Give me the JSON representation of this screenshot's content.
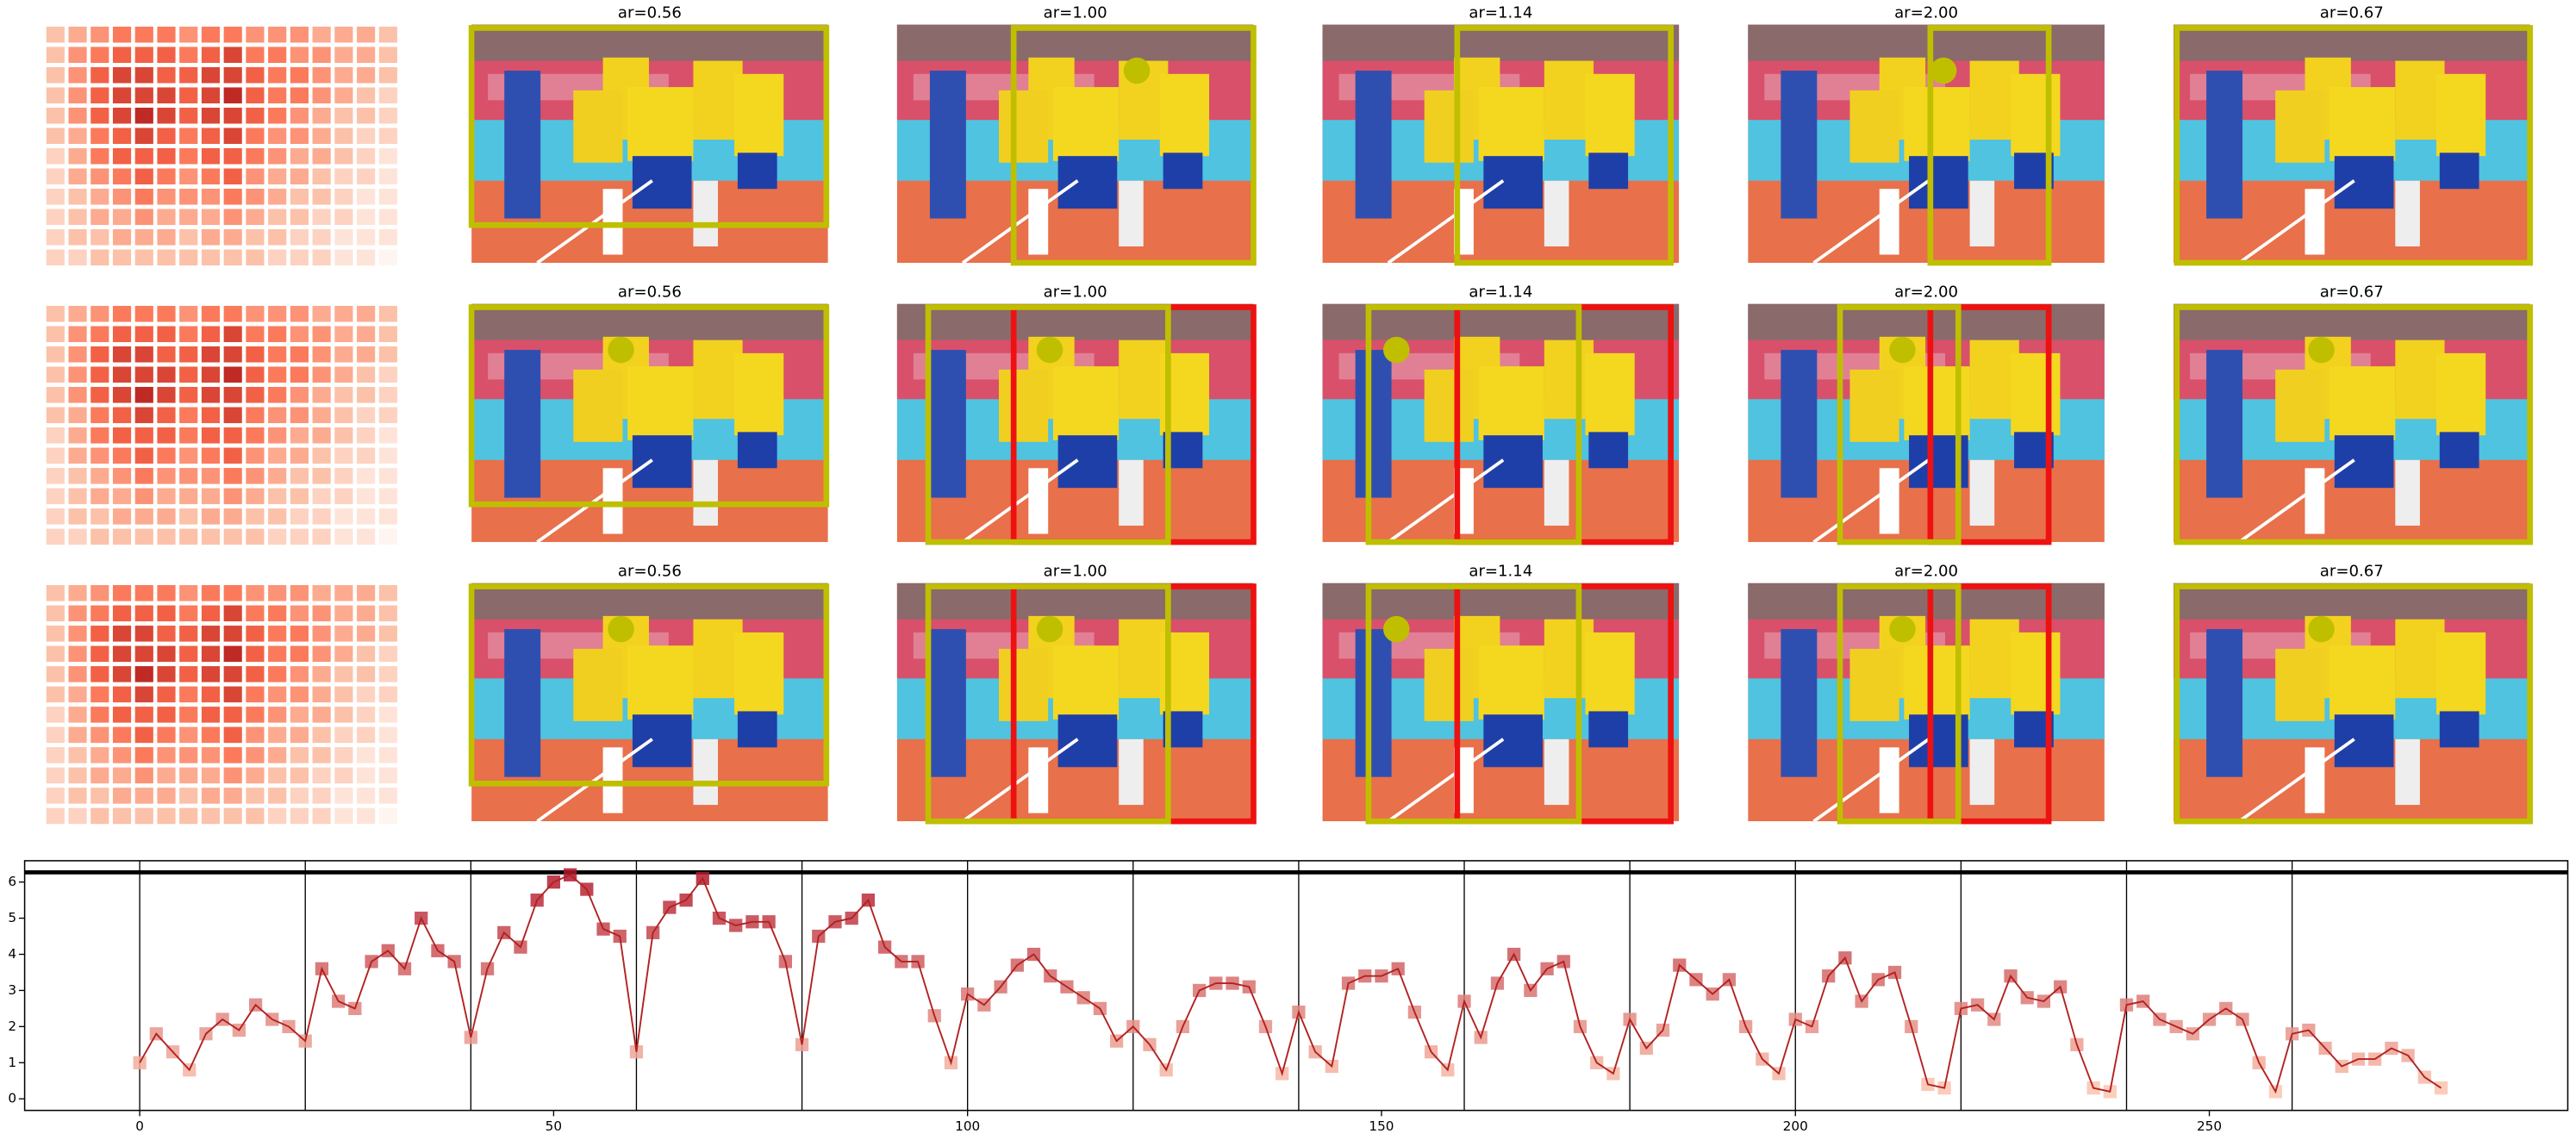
{
  "panels": {
    "titles": [
      "ar=0.56",
      "ar=1.00",
      "ar=1.14",
      "ar=2.00",
      "ar=0.67"
    ]
  },
  "chart_data": [
    {
      "type": "heatmap",
      "colormap": [
        "#fff5f0",
        "#fcbba1",
        "#fb6a4a",
        "#a50f15"
      ],
      "values": [
        [
          0.3,
          0.4,
          0.5,
          0.6,
          0.6,
          0.6,
          0.5,
          0.6,
          0.6,
          0.5,
          0.5,
          0.5,
          0.4,
          0.4,
          0.4,
          0.3
        ],
        [
          0.3,
          0.5,
          0.6,
          0.7,
          0.7,
          0.7,
          0.6,
          0.7,
          0.8,
          0.6,
          0.6,
          0.5,
          0.5,
          0.4,
          0.4,
          0.3
        ],
        [
          0.3,
          0.5,
          0.7,
          0.8,
          0.8,
          0.7,
          0.7,
          0.8,
          0.8,
          0.7,
          0.6,
          0.6,
          0.5,
          0.4,
          0.4,
          0.3
        ],
        [
          0.3,
          0.5,
          0.7,
          0.8,
          0.8,
          0.8,
          0.7,
          0.8,
          0.9,
          0.7,
          0.6,
          0.6,
          0.5,
          0.4,
          0.3,
          0.2
        ],
        [
          0.3,
          0.5,
          0.7,
          0.8,
          0.9,
          0.8,
          0.7,
          0.8,
          0.8,
          0.7,
          0.6,
          0.5,
          0.4,
          0.3,
          0.3,
          0.2
        ],
        [
          0.3,
          0.4,
          0.6,
          0.7,
          0.8,
          0.7,
          0.6,
          0.7,
          0.8,
          0.6,
          0.5,
          0.5,
          0.4,
          0.3,
          0.2,
          0.2
        ],
        [
          0.2,
          0.4,
          0.6,
          0.7,
          0.7,
          0.7,
          0.6,
          0.7,
          0.7,
          0.6,
          0.5,
          0.4,
          0.4,
          0.3,
          0.2,
          0.1
        ],
        [
          0.2,
          0.4,
          0.5,
          0.6,
          0.7,
          0.6,
          0.5,
          0.6,
          0.7,
          0.5,
          0.4,
          0.4,
          0.3,
          0.2,
          0.2,
          0.1
        ],
        [
          0.2,
          0.3,
          0.4,
          0.5,
          0.6,
          0.5,
          0.5,
          0.5,
          0.6,
          0.5,
          0.4,
          0.3,
          0.3,
          0.2,
          0.1,
          0.1
        ],
        [
          0.2,
          0.3,
          0.4,
          0.4,
          0.5,
          0.4,
          0.4,
          0.4,
          0.5,
          0.4,
          0.3,
          0.3,
          0.2,
          0.2,
          0.1,
          0.1
        ],
        [
          0.2,
          0.3,
          0.3,
          0.4,
          0.4,
          0.4,
          0.3,
          0.4,
          0.4,
          0.3,
          0.3,
          0.2,
          0.2,
          0.1,
          0.1,
          0.1
        ],
        [
          0.2,
          0.2,
          0.3,
          0.3,
          0.3,
          0.3,
          0.3,
          0.3,
          0.3,
          0.3,
          0.2,
          0.2,
          0.2,
          0.1,
          0.1,
          0.0
        ]
      ]
    },
    {
      "type": "line",
      "color": "#b22222",
      "marker_colormap": [
        "#fcc5b0",
        "#b2182b"
      ],
      "x": [
        0,
        2,
        4,
        6,
        8,
        10,
        12,
        14,
        16,
        18,
        20,
        22,
        24,
        26,
        28,
        30,
        32,
        34,
        36,
        38,
        40,
        42,
        44,
        46,
        48,
        50,
        52,
        54,
        56,
        58,
        60,
        62,
        64,
        66,
        68,
        70,
        72,
        74,
        76,
        78,
        80,
        82,
        84,
        86,
        88,
        90,
        92,
        94,
        96,
        98,
        100,
        102,
        104,
        106,
        108,
        110,
        112,
        114,
        116,
        118,
        120,
        122,
        124,
        126,
        128,
        130,
        132,
        134,
        136,
        138,
        140,
        142,
        144,
        146,
        148,
        150,
        152,
        154,
        156,
        158,
        160,
        162,
        164,
        166,
        168,
        170,
        172,
        174,
        176,
        178,
        180,
        182,
        184,
        186,
        188,
        190,
        192,
        194,
        196,
        198,
        200,
        202,
        204,
        206,
        208,
        210,
        212,
        214,
        216,
        218,
        220,
        222,
        224,
        226,
        228,
        230,
        232,
        234,
        236,
        238,
        240,
        242,
        244,
        246,
        248,
        250,
        252,
        254,
        256,
        258,
        260,
        262,
        264,
        266,
        268,
        270,
        272,
        274,
        276,
        278
      ],
      "values": [
        1.0,
        1.8,
        1.3,
        0.8,
        1.8,
        2.2,
        1.9,
        2.6,
        2.2,
        2.0,
        1.6,
        3.6,
        2.7,
        2.5,
        3.8,
        4.1,
        3.6,
        5.0,
        4.1,
        3.8,
        1.7,
        3.6,
        4.6,
        4.2,
        5.5,
        6.0,
        6.2,
        5.8,
        4.7,
        4.5,
        1.3,
        4.6,
        5.3,
        5.5,
        6.1,
        5.0,
        4.8,
        4.9,
        4.9,
        3.8,
        1.5,
        4.5,
        4.9,
        5.0,
        5.5,
        4.2,
        3.8,
        3.8,
        2.3,
        1.0,
        2.9,
        2.6,
        3.1,
        3.7,
        4.0,
        3.4,
        3.1,
        2.8,
        2.5,
        1.6,
        2.0,
        1.5,
        0.8,
        2.0,
        3.0,
        3.2,
        3.2,
        3.1,
        2.0,
        0.7,
        2.4,
        1.3,
        0.9,
        3.2,
        3.4,
        3.4,
        3.6,
        2.4,
        1.3,
        0.8,
        2.7,
        1.7,
        3.2,
        4.0,
        3.0,
        3.6,
        3.8,
        2.0,
        1.0,
        0.7,
        2.2,
        1.4,
        1.9,
        3.7,
        3.3,
        2.9,
        3.3,
        2.0,
        1.1,
        0.7,
        2.2,
        2.0,
        3.4,
        3.9,
        2.7,
        3.3,
        3.5,
        2.0,
        0.4,
        0.3,
        2.5,
        2.6,
        2.2,
        3.4,
        2.8,
        2.7,
        3.1,
        1.5,
        0.3,
        0.2,
        2.6,
        2.7,
        2.2,
        2.0,
        1.8,
        2.2,
        2.5,
        2.2,
        1.0,
        0.2,
        1.8,
        1.9,
        1.4,
        0.9,
        1.1,
        1.1,
        1.4,
        1.2,
        0.6,
        0.3
      ],
      "xlim": [
        -13.9,
        293.3
      ],
      "ylim": [
        -0.32,
        6.59
      ],
      "xticks": [
        0,
        50,
        100,
        150,
        200,
        250
      ],
      "yticks": [
        0,
        1,
        2,
        3,
        4,
        5,
        6
      ],
      "vlines": [
        0,
        20,
        40,
        60,
        80,
        100,
        120,
        140,
        160,
        180,
        200,
        220,
        240,
        260
      ],
      "hline": 6.27
    }
  ]
}
